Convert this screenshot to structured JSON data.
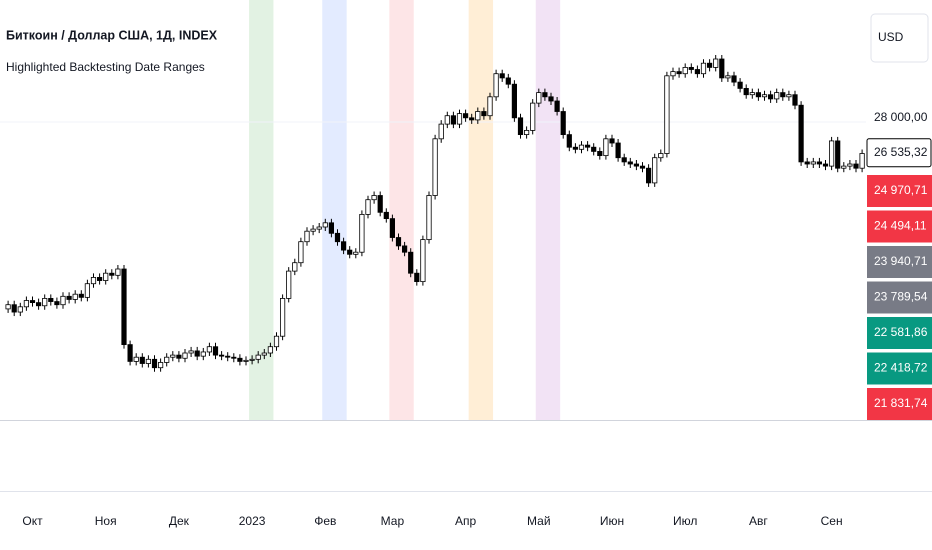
{
  "chart_data": {
    "type": "candlestick",
    "title": "Биткоин / Доллар США, 1Д, INDEX",
    "subtitle": "Highlighted Backtesting Date Ranges",
    "currency": "USD",
    "color_up": "#ffffff",
    "color_down": "#000000",
    "categories": [
      null,
      null,
      null,
      null,
      null,
      "Окт",
      null,
      null,
      null,
      null,
      null,
      null,
      null,
      null,
      null,
      null,
      null,
      "Ноя",
      null,
      null,
      null,
      null,
      null,
      null,
      null,
      null,
      null,
      null,
      null,
      "Дек",
      null,
      null,
      null,
      null,
      null,
      null,
      null,
      null,
      null,
      null,
      null,
      "2023",
      null,
      null,
      null,
      null,
      null,
      null,
      null,
      null,
      null,
      null,
      null,
      "Фев",
      null,
      null,
      null,
      null,
      null,
      null,
      null,
      null,
      null,
      null,
      "Мар",
      null,
      null,
      null,
      null,
      null,
      null,
      null,
      null,
      null,
      null,
      null,
      "Апр",
      null,
      null,
      null,
      null,
      null,
      null,
      null,
      null,
      null,
      null,
      null,
      "Май",
      null,
      null,
      null,
      null,
      null,
      null,
      null,
      null,
      null,
      null,
      null,
      "Июн",
      null,
      null,
      null,
      null,
      null,
      null,
      null,
      null,
      null,
      null,
      null,
      "Июл",
      null,
      null,
      null,
      null,
      null,
      null,
      null,
      null,
      null,
      null,
      null,
      "Авг",
      null,
      null,
      null,
      null,
      null,
      null,
      null,
      null,
      null,
      null,
      null,
      "Сен",
      null,
      null,
      null,
      null,
      null
    ],
    "values": [
      19100,
      19300,
      18950,
      19200,
      19500,
      19400,
      19250,
      19600,
      19450,
      19300,
      19700,
      19550,
      19800,
      19650,
      20300,
      20600,
      20450,
      20800,
      20700,
      21000,
      17400,
      16600,
      16800,
      16500,
      16700,
      16300,
      16550,
      16800,
      16900,
      16750,
      17000,
      17100,
      16850,
      17050,
      17300,
      16900,
      16850,
      16800,
      16750,
      16600,
      16650,
      16700,
      16900,
      17000,
      17300,
      17800,
      19600,
      20900,
      21300,
      22300,
      22800,
      22900,
      23000,
      23200,
      22700,
      22300,
      21900,
      21700,
      21800,
      23600,
      24300,
      24500,
      23700,
      23400,
      22500,
      22100,
      21800,
      20800,
      20400,
      22400,
      24500,
      27200,
      27900,
      28300,
      27900,
      28400,
      28200,
      28100,
      28500,
      28300,
      29200,
      30300,
      30100,
      29800,
      28200,
      27400,
      27600,
      28900,
      29400,
      29200,
      29000,
      28500,
      27400,
      26800,
      26700,
      26900,
      26800,
      26600,
      26400,
      27200,
      27000,
      26300,
      26100,
      26000,
      25900,
      25800,
      25100,
      26300,
      26500,
      30200,
      30400,
      30300,
      30600,
      30500,
      30300,
      30800,
      30600,
      31000,
      30100,
      30200,
      29900,
      29600,
      29300,
      29400,
      29200,
      29300,
      29100,
      29400,
      29200,
      29300,
      28800,
      26100,
      26000,
      26100,
      26000,
      25900,
      27100,
      25800,
      25900,
      26000,
      25800,
      26500
    ],
    "ylim": [
      13810,
      33810
    ],
    "yticks": [
      {
        "value": 28000,
        "label": "28 000,00"
      }
    ],
    "last_price": {
      "value": 26535.32,
      "label": "26 535,32"
    },
    "price_labels": [
      {
        "value": 24970.71,
        "label": "24 970,71",
        "color": "#f23645"
      },
      {
        "value": 24494.11,
        "label": "24 494,11",
        "color": "#f23645"
      },
      {
        "value": 23940.71,
        "label": "23 940,71",
        "color": "#787b86"
      },
      {
        "value": 23789.54,
        "label": "23 789,54",
        "color": "#787b86"
      },
      {
        "value": 22581.86,
        "label": "22 581,86",
        "color": "#089981"
      },
      {
        "value": 22418.72,
        "label": "22 418,72",
        "color": "#089981"
      },
      {
        "value": 21831.74,
        "label": "21 831,74",
        "color": "#f23645"
      }
    ],
    "highlights": [
      {
        "from": 41,
        "to": 45,
        "color": "rgba(76,175,80,0.16)"
      },
      {
        "from": 53,
        "to": 57,
        "color": "rgba(41,98,255,0.13)"
      },
      {
        "from": 64,
        "to": 68,
        "color": "rgba(242,54,69,0.13)"
      },
      {
        "from": 77,
        "to": 81,
        "color": "rgba(255,152,0,0.16)"
      },
      {
        "from": 88,
        "to": 92,
        "color": "rgba(156,39,176,0.13)"
      }
    ]
  }
}
